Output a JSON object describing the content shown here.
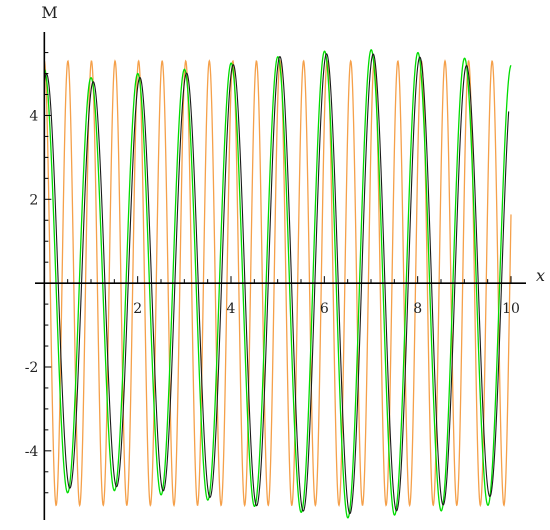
{
  "chart_data": {
    "type": "line",
    "xlabel": "x",
    "ylabel": "M",
    "xlim": [
      -0.2,
      10.15
    ],
    "ylim": [
      -5.65,
      5.8
    ],
    "x_ticks": [
      2,
      4,
      6,
      8,
      10
    ],
    "y_ticks": [
      -4,
      -2,
      2,
      4
    ],
    "x_tick_labels": [
      "2",
      "4",
      "6",
      "8",
      "10"
    ],
    "y_tick_labels": [
      "-4",
      "-2",
      "2",
      "4"
    ],
    "grid": false,
    "legend": "none",
    "series": [
      {
        "color": "#f5a04a",
        "amplitude_envelope": [
          [
            0,
            5.3
          ],
          [
            10,
            5.3
          ]
        ],
        "frequency": 1.98,
        "phase": 1.571,
        "x_range": [
          0,
          10
        ]
      },
      {
        "color": "#00dd00",
        "amplitude_envelope": [
          [
            0,
            5.1
          ],
          [
            1,
            4.9
          ],
          [
            3,
            5.1
          ],
          [
            5,
            5.4
          ],
          [
            6.5,
            5.6
          ],
          [
            8,
            5.5
          ],
          [
            9.5,
            5.3
          ],
          [
            10,
            5.2
          ]
        ],
        "frequency": 0.9993,
        "phase": 1.571,
        "x_range": [
          0,
          10
        ]
      },
      {
        "color": "#1a1a1a",
        "amplitude_envelope": [
          [
            0,
            5.0
          ],
          [
            1,
            4.8
          ],
          [
            3,
            5.0
          ],
          [
            5,
            5.4
          ],
          [
            6.5,
            5.5
          ],
          [
            8,
            5.4
          ],
          [
            9.5,
            5.1
          ],
          [
            10,
            5.0
          ]
        ],
        "frequency": 1.0,
        "phase": 1.271,
        "x_range": [
          0,
          9.95
        ]
      }
    ]
  }
}
